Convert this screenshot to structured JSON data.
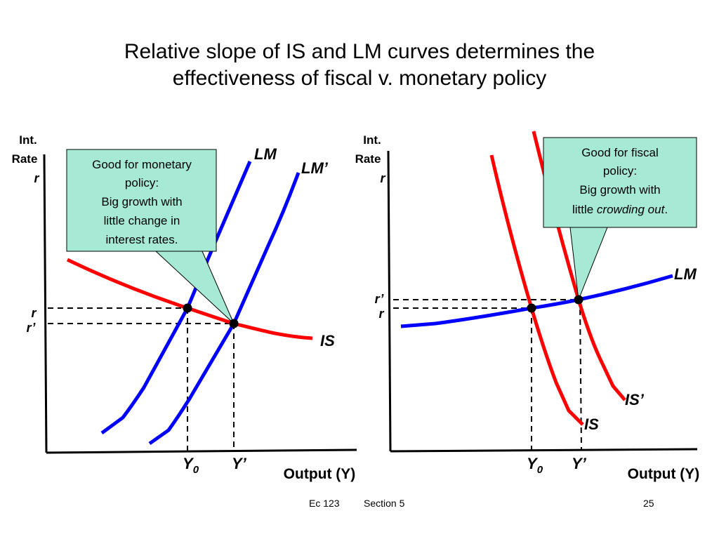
{
  "slide": {
    "title_line1": "Relative slope of IS and LM curves determines the",
    "title_line2": "effectiveness of fiscal v. monetary policy",
    "footer_course": "Ec 123",
    "footer_section": "Section 5",
    "page_number": "25"
  },
  "colors": {
    "is_curve": "#ff0000",
    "lm_curve": "#0000ff",
    "callout_fill": "#a6ead6",
    "axis": "#000000"
  },
  "left_panel": {
    "y_axis_label_line1": "Int.",
    "y_axis_label_line2": "Rate",
    "y_axis_symbol": "r",
    "x_axis_label": "Output (Y)",
    "curves": {
      "lm": "LM",
      "lm_shifted": "LM’",
      "is": "IS"
    },
    "rate_labels": {
      "r": "r",
      "r_prime": "r’"
    },
    "output_labels": {
      "y0_base": "Y",
      "y0_sub": "0",
      "y_prime": "Y’"
    },
    "callout": {
      "line1": "Good for monetary",
      "line2": "policy:",
      "line3": "Big growth with",
      "line4": "little change in",
      "line5": "interest rates."
    }
  },
  "right_panel": {
    "y_axis_label_line1": "Int.",
    "y_axis_label_line2": "Rate",
    "y_axis_symbol": "r",
    "x_axis_label": "Output (Y)",
    "curves": {
      "lm": "LM",
      "is": "IS",
      "is_shifted": "IS’"
    },
    "rate_labels": {
      "r": "r",
      "r_prime": "r’"
    },
    "output_labels": {
      "y0_base": "Y",
      "y0_sub": "0",
      "y_prime": "Y’"
    },
    "callout": {
      "line1": "Good for fiscal",
      "line2": "policy:",
      "line3": "Big growth with",
      "line4_plain": "little ",
      "line4_italic": "crowding out",
      "line4_end": "."
    }
  }
}
